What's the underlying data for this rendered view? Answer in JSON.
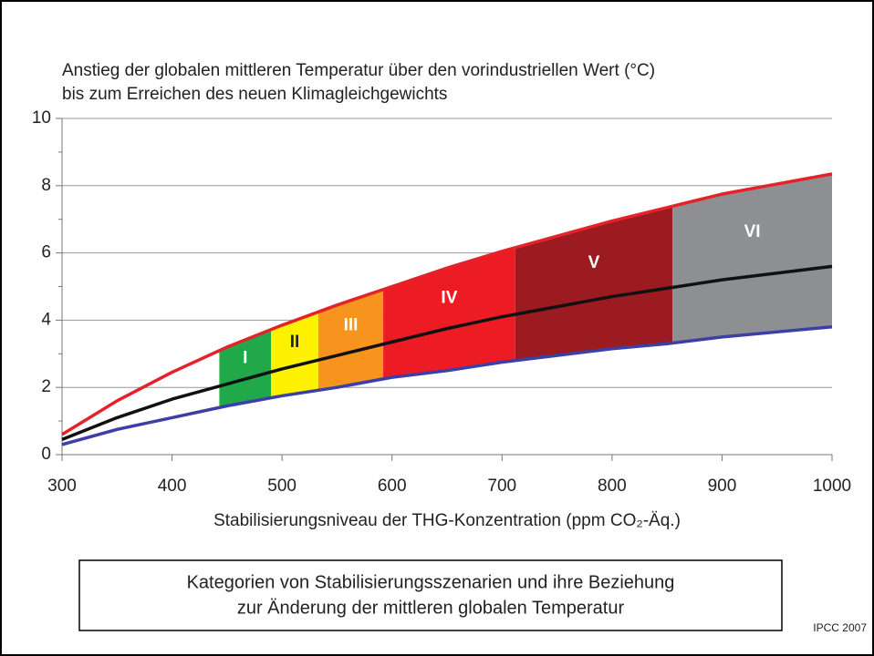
{
  "chart_data": {
    "type": "band-line",
    "title": [
      "Anstieg der globalen mittleren Temperatur über den vorindustriellen Wert (°C)",
      "bis zum Erreichen des neuen Klimagleichgewichts"
    ],
    "xlabel": "Stabilisierungsniveau der THG-Konzentration (ppm CO₂-Äq.)",
    "x": [
      300,
      350,
      400,
      450,
      500,
      550,
      600,
      650,
      700,
      750,
      800,
      850,
      900,
      950,
      1000
    ],
    "series": [
      {
        "color": "#e3222a",
        "values": [
          0.6,
          1.6,
          2.45,
          3.2,
          3.85,
          4.45,
          5.0,
          5.55,
          6.05,
          6.5,
          6.95,
          7.35,
          7.75,
          8.05,
          8.35
        ]
      },
      {
        "color": "#111111",
        "values": [
          0.45,
          1.1,
          1.65,
          2.1,
          2.55,
          2.95,
          3.35,
          3.75,
          4.1,
          4.4,
          4.7,
          4.95,
          5.2,
          5.4,
          5.6
        ]
      },
      {
        "color": "#3b3fa6",
        "values": [
          0.3,
          0.75,
          1.1,
          1.45,
          1.75,
          2.0,
          2.3,
          2.5,
          2.75,
          2.95,
          3.15,
          3.3,
          3.5,
          3.65,
          3.8
        ]
      }
    ],
    "bands": [
      {
        "label": "I",
        "from": 443,
        "to": 490,
        "color": "#21a849",
        "label_color": "#ffffff"
      },
      {
        "label": "II",
        "from": 490,
        "to": 533,
        "color": "#fff200",
        "label_color": "#222222"
      },
      {
        "label": "III",
        "from": 533,
        "to": 592,
        "color": "#f7941d",
        "label_color": "#ffffff"
      },
      {
        "label": "IV",
        "from": 592,
        "to": 712,
        "color": "#ed1c24",
        "label_color": "#ffffff"
      },
      {
        "label": "V",
        "from": 712,
        "to": 855,
        "color": "#9b1b20",
        "label_color": "#ffffff"
      },
      {
        "label": "VI",
        "from": 855,
        "to": 1000,
        "color": "#8d8f92",
        "label_color": "#ffffff"
      }
    ],
    "xlim": [
      300,
      1000
    ],
    "ylim": [
      0,
      10
    ],
    "xticks": [
      300,
      400,
      500,
      600,
      700,
      800,
      900,
      1000
    ],
    "yticks": [
      0,
      2,
      4,
      6,
      8,
      10
    ],
    "yminorticks": [
      1,
      3,
      5,
      7,
      9
    ],
    "grid": true,
    "caption": [
      "Kategorien von Stabilisierungsszenarien und ihre Beziehung",
      "zur Änderung der mittleren globalen Temperatur"
    ],
    "source": "IPCC 2007"
  }
}
